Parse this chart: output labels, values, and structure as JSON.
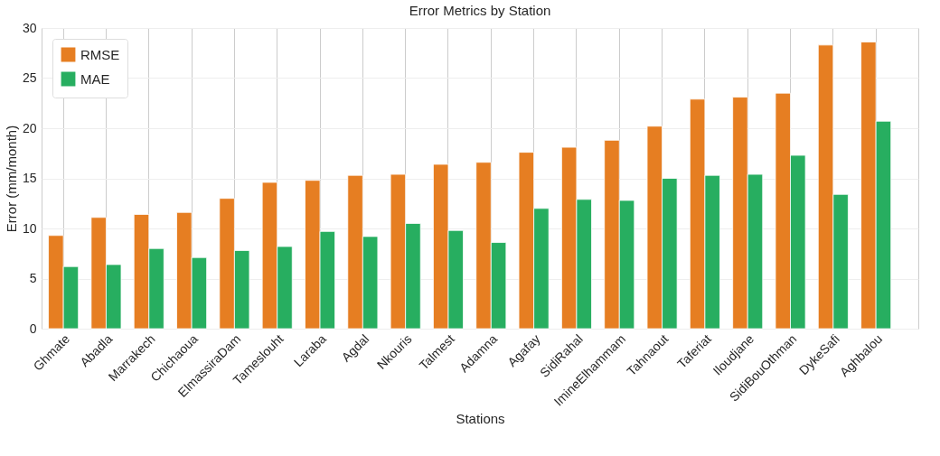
{
  "chart_data": {
    "type": "bar",
    "title": "Error Metrics by Station",
    "xlabel": "Stations",
    "ylabel": "Error (mm/month)",
    "categories": [
      "Ghmate",
      "Abadla",
      "Marrakech",
      "Chichaoua",
      "ElmassiraDam",
      "Tameslouht",
      "Laraba",
      "Agdal",
      "Nkouris",
      "Talmest",
      "Adamna",
      "Agafay",
      "SidiRahal",
      "ImineElhammam",
      "Tahnaout",
      "Taferiat",
      "Iloudjane",
      "SidiBouOthman",
      "DykeSafi",
      "Aghbalou"
    ],
    "series": [
      {
        "name": "RMSE",
        "color": "#e67e22",
        "values": [
          9.3,
          11.1,
          11.4,
          11.6,
          13.0,
          14.6,
          14.8,
          15.3,
          15.4,
          16.4,
          16.6,
          17.6,
          18.1,
          18.8,
          20.2,
          22.9,
          23.1,
          23.5,
          28.3,
          28.6
        ]
      },
      {
        "name": "MAE",
        "color": "#27ae60",
        "values": [
          6.2,
          6.4,
          8.0,
          7.1,
          7.8,
          8.2,
          9.7,
          9.2,
          10.5,
          9.8,
          8.6,
          12.0,
          12.9,
          12.8,
          15.0,
          15.3,
          15.4,
          17.3,
          13.4,
          20.7
        ]
      }
    ],
    "ylim": [
      0,
      30
    ],
    "yticks": [
      0,
      5,
      10,
      15,
      20,
      25,
      30
    ],
    "grid": true,
    "legend": "top left"
  }
}
